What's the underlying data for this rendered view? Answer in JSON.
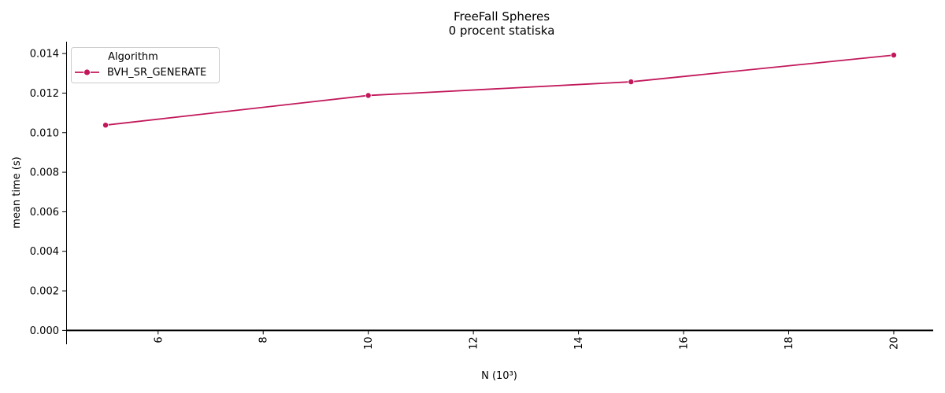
{
  "chart_data": {
    "type": "line",
    "title": "FreeFall Spheres",
    "subtitle": "0 procent statiska",
    "xlabel": "N (10³)",
    "ylabel": "mean time (s)",
    "xlim": [
      4.25,
      20.75
    ],
    "ylim": [
      -0.0007,
      0.0146
    ],
    "x_ticks": [
      6,
      8,
      10,
      12,
      14,
      16,
      18,
      20
    ],
    "y_ticks": [
      0.0,
      0.002,
      0.004,
      0.006,
      0.008,
      0.01,
      0.012,
      0.014
    ],
    "y_tick_labels": [
      "0.000",
      "0.002",
      "0.004",
      "0.006",
      "0.008",
      "0.010",
      "0.012",
      "0.014"
    ],
    "x_tick_rotation": "vertical",
    "grid": false,
    "reference_line": {
      "y": 0.0,
      "color": "#000000"
    },
    "legend": {
      "title": "Algorithm",
      "placement": "top-left"
    },
    "series": [
      {
        "name": "BVH_SR_GENERATE",
        "color": "#c2185b",
        "marker": "circle",
        "x": [
          5,
          10,
          15,
          20
        ],
        "y": [
          0.01038,
          0.01188,
          0.01257,
          0.01392
        ]
      }
    ]
  }
}
